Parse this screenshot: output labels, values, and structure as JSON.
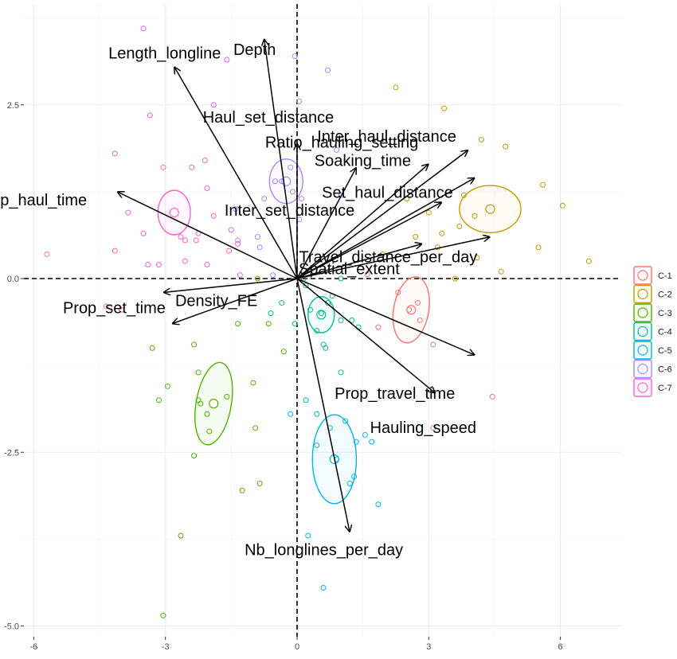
{
  "chart_data": {
    "type": "scatter",
    "title": "",
    "xlabel": "",
    "ylabel": "",
    "xlim": [
      -6.4,
      6.9
    ],
    "ylim": [
      -5.2,
      3.95
    ],
    "x_ticks": [
      -6,
      -3,
      0,
      3,
      6
    ],
    "x_tick_labels": [
      "-6",
      "-3",
      "0",
      "3",
      "6"
    ],
    "y_ticks": [
      2.5,
      0.0,
      -2.5,
      -5.0
    ],
    "y_tick_labels": [
      "2.5",
      "0.0",
      "-2.5",
      "-5.0"
    ],
    "grid": true,
    "reference_lines": {
      "x": 0,
      "y": 0,
      "style": "dashed"
    },
    "legend": {
      "position": "right",
      "entries": [
        "C-1",
        "C-2",
        "C-3",
        "C-4",
        "C-5",
        "C-6",
        "C-7"
      ]
    },
    "colors": {
      "C-1": "#F8766D",
      "C-2": "#C49A00",
      "C-3": "#53B400",
      "C-4": "#00C094",
      "C-5": "#00B6EB",
      "C-6": "#A58AFF",
      "C-7": "#FB61D7"
    },
    "clusters": [
      {
        "name": "C-1",
        "center": [
          2.6,
          -0.45
        ],
        "ellipse": {
          "rx": 0.4,
          "ry": 0.48,
          "angle": 10
        }
      },
      {
        "name": "C-2",
        "center": [
          4.4,
          1.0
        ],
        "ellipse": {
          "rx": 0.7,
          "ry": 0.34,
          "angle": 0
        }
      },
      {
        "name": "C-3",
        "center": [
          -1.9,
          -1.8
        ],
        "ellipse": {
          "rx": 0.4,
          "ry": 0.6,
          "angle": 10
        }
      },
      {
        "name": "C-4",
        "center": [
          0.55,
          -0.52
        ],
        "ellipse": {
          "rx": 0.3,
          "ry": 0.26,
          "angle": 0
        }
      },
      {
        "name": "C-5",
        "center": [
          0.85,
          -2.6
        ],
        "ellipse": {
          "rx": 0.5,
          "ry": 0.64,
          "angle": 0
        }
      },
      {
        "name": "C-6",
        "center": [
          -0.25,
          1.4
        ],
        "ellipse": {
          "rx": 0.38,
          "ry": 0.32,
          "angle": 0
        }
      },
      {
        "name": "C-7",
        "center": [
          -2.8,
          0.95
        ],
        "ellipse": {
          "rx": 0.37,
          "ry": 0.32,
          "angle": 0
        }
      }
    ],
    "points": [
      {
        "cluster": "C-1",
        "x": 2.3,
        "y": -0.2
      },
      {
        "cluster": "C-1",
        "x": 2.55,
        "y": -0.45
      },
      {
        "cluster": "C-1",
        "x": 2.8,
        "y": -0.6
      },
      {
        "cluster": "C-1",
        "x": 3.1,
        "y": -0.95
      },
      {
        "cluster": "C-1",
        "x": 1.85,
        "y": -0.7
      },
      {
        "cluster": "C-1",
        "x": 1.6,
        "y": 0.06
      },
      {
        "cluster": "C-1",
        "x": 3.1,
        "y": -2.15
      },
      {
        "cluster": "C-1",
        "x": 4.45,
        "y": -1.7
      },
      {
        "cluster": "C-1",
        "x": 2.75,
        "y": -0.35
      },
      {
        "cluster": "C-2",
        "x": 2.25,
        "y": 2.75
      },
      {
        "cluster": "C-2",
        "x": 3.35,
        "y": 2.45
      },
      {
        "cluster": "C-2",
        "x": 4.2,
        "y": 2.0
      },
      {
        "cluster": "C-2",
        "x": 4.75,
        "y": 1.9
      },
      {
        "cluster": "C-2",
        "x": 5.6,
        "y": 1.35
      },
      {
        "cluster": "C-2",
        "x": 6.05,
        "y": 1.05
      },
      {
        "cluster": "C-2",
        "x": 3.8,
        "y": 1.2
      },
      {
        "cluster": "C-2",
        "x": 5.5,
        "y": 0.45
      },
      {
        "cluster": "C-2",
        "x": 4.1,
        "y": 0.3
      },
      {
        "cluster": "C-2",
        "x": 4.65,
        "y": 0.1
      },
      {
        "cluster": "C-2",
        "x": 3.6,
        "y": 0.0
      },
      {
        "cluster": "C-2",
        "x": 6.65,
        "y": 0.25
      },
      {
        "cluster": "C-2",
        "x": 3.2,
        "y": 0.45
      },
      {
        "cluster": "C-2",
        "x": 2.7,
        "y": 0.6
      },
      {
        "cluster": "C-2",
        "x": 3.3,
        "y": 0.65
      },
      {
        "cluster": "C-2",
        "x": 3.0,
        "y": 0.95
      },
      {
        "cluster": "C-2",
        "x": 2.5,
        "y": 1.15
      },
      {
        "cluster": "C-2",
        "x": 4.05,
        "y": 0.9
      },
      {
        "cluster": "C-2",
        "x": 3.7,
        "y": 0.75
      },
      {
        "cluster": "C-2",
        "x": 1.95,
        "y": 0.35
      },
      {
        "cluster": "C-3",
        "x": -0.85,
        "y": -2.95
      },
      {
        "cluster": "C-3",
        "x": -1.25,
        "y": -3.05
      },
      {
        "cluster": "C-3",
        "x": -2.65,
        "y": -3.7
      },
      {
        "cluster": "C-3",
        "x": -3.05,
        "y": -4.85
      },
      {
        "cluster": "C-3",
        "x": -2.35,
        "y": -2.55
      },
      {
        "cluster": "C-3",
        "x": -2.0,
        "y": -2.2
      },
      {
        "cluster": "C-3",
        "x": -1.6,
        "y": -1.7
      },
      {
        "cluster": "C-3",
        "x": -2.2,
        "y": -1.8
      },
      {
        "cluster": "C-3",
        "x": -2.05,
        "y": -1.95
      },
      {
        "cluster": "C-3",
        "x": -2.25,
        "y": -1.75
      },
      {
        "cluster": "C-3",
        "x": -2.25,
        "y": -1.35
      },
      {
        "cluster": "C-3",
        "x": -2.35,
        "y": -0.95
      },
      {
        "cluster": "C-3",
        "x": -3.15,
        "y": -1.75
      },
      {
        "cluster": "C-3",
        "x": -2.95,
        "y": -1.55
      },
      {
        "cluster": "C-3",
        "x": -3.3,
        "y": -1.0
      },
      {
        "cluster": "C-3",
        "x": -1.0,
        "y": -1.5
      },
      {
        "cluster": "C-3",
        "x": -0.95,
        "y": -2.15
      },
      {
        "cluster": "C-3",
        "x": -0.65,
        "y": -0.65
      },
      {
        "cluster": "C-3",
        "x": -0.3,
        "y": -1.05
      },
      {
        "cluster": "C-3",
        "x": -0.9,
        "y": 0.0
      },
      {
        "cluster": "C-3",
        "x": -1.35,
        "y": -0.65
      },
      {
        "cluster": "C-4",
        "x": 0.55,
        "y": -0.5
      },
      {
        "cluster": "C-4",
        "x": 0.7,
        "y": -0.35
      },
      {
        "cluster": "C-4",
        "x": 0.3,
        "y": -0.45
      },
      {
        "cluster": "C-4",
        "x": 0.45,
        "y": -0.75
      },
      {
        "cluster": "C-4",
        "x": 0.6,
        "y": -0.95
      },
      {
        "cluster": "C-4",
        "x": 0.65,
        "y": -1.0
      },
      {
        "cluster": "C-4",
        "x": 1.0,
        "y": -0.6
      },
      {
        "cluster": "C-4",
        "x": 1.25,
        "y": -0.6
      },
      {
        "cluster": "C-4",
        "x": 1.4,
        "y": -0.7
      },
      {
        "cluster": "C-4",
        "x": 0.8,
        "y": -0.25
      },
      {
        "cluster": "C-4",
        "x": 1.0,
        "y": -1.35
      },
      {
        "cluster": "C-4",
        "x": -0.35,
        "y": -0.35
      },
      {
        "cluster": "C-4",
        "x": -0.6,
        "y": -0.5
      },
      {
        "cluster": "C-4",
        "x": -0.05,
        "y": -0.65
      },
      {
        "cluster": "C-4",
        "x": 0.2,
        "y": -0.1
      },
      {
        "cluster": "C-4",
        "x": 0.15,
        "y": 0.0
      },
      {
        "cluster": "C-4",
        "x": 1.0,
        "y": 0.0
      },
      {
        "cluster": "C-5",
        "x": 0.9,
        "y": -2.6
      },
      {
        "cluster": "C-5",
        "x": 0.45,
        "y": -2.4
      },
      {
        "cluster": "C-5",
        "x": 0.75,
        "y": -2.15
      },
      {
        "cluster": "C-5",
        "x": 1.1,
        "y": -2.05
      },
      {
        "cluster": "C-5",
        "x": 1.35,
        "y": -2.35
      },
      {
        "cluster": "C-5",
        "x": 1.3,
        "y": -2.85
      },
      {
        "cluster": "C-5",
        "x": 1.2,
        "y": -2.95
      },
      {
        "cluster": "C-5",
        "x": 0.2,
        "y": -1.75
      },
      {
        "cluster": "C-5",
        "x": 0.45,
        "y": -1.95
      },
      {
        "cluster": "C-5",
        "x": 1.55,
        "y": -2.25
      },
      {
        "cluster": "C-5",
        "x": 1.7,
        "y": -2.35
      },
      {
        "cluster": "C-5",
        "x": 1.85,
        "y": -3.25
      },
      {
        "cluster": "C-5",
        "x": -0.15,
        "y": -1.95
      },
      {
        "cluster": "C-5",
        "x": 0.25,
        "y": -3.7
      },
      {
        "cluster": "C-5",
        "x": 0.6,
        "y": -4.45
      },
      {
        "cluster": "C-6",
        "x": -0.15,
        "y": 1.6
      },
      {
        "cluster": "C-6",
        "x": -0.35,
        "y": 1.4
      },
      {
        "cluster": "C-6",
        "x": -0.5,
        "y": 1.4
      },
      {
        "cluster": "C-6",
        "x": -0.1,
        "y": 1.25
      },
      {
        "cluster": "C-6",
        "x": 0.1,
        "y": 1.15
      },
      {
        "cluster": "C-6",
        "x": -0.75,
        "y": 1.15
      },
      {
        "cluster": "C-6",
        "x": -0.05,
        "y": 3.2
      },
      {
        "cluster": "C-6",
        "x": 0.05,
        "y": 2.55
      },
      {
        "cluster": "C-6",
        "x": 0.7,
        "y": 3.0
      },
      {
        "cluster": "C-6",
        "x": 0.9,
        "y": 1.85
      },
      {
        "cluster": "C-6",
        "x": 1.0,
        "y": 1.2
      },
      {
        "cluster": "C-6",
        "x": -1.4,
        "y": 1.0
      },
      {
        "cluster": "C-6",
        "x": -0.9,
        "y": 0.6
      },
      {
        "cluster": "C-6",
        "x": -0.85,
        "y": 0.45
      },
      {
        "cluster": "C-6",
        "x": -1.35,
        "y": 0.55
      },
      {
        "cluster": "C-6",
        "x": 0.05,
        "y": 0.85
      },
      {
        "cluster": "C-6",
        "x": -0.55,
        "y": 0.05
      },
      {
        "cluster": "C-7",
        "x": -3.5,
        "y": 3.6
      },
      {
        "cluster": "C-7",
        "x": -1.6,
        "y": 3.15
      },
      {
        "cluster": "C-7",
        "x": -3.35,
        "y": 2.35
      },
      {
        "cluster": "C-7",
        "x": -4.15,
        "y": 1.8
      },
      {
        "cluster": "C-7",
        "x": -3.05,
        "y": 1.6
      },
      {
        "cluster": "C-7",
        "x": -1.9,
        "y": 2.5
      },
      {
        "cluster": "C-7",
        "x": -2.1,
        "y": 1.7
      },
      {
        "cluster": "C-7",
        "x": -2.4,
        "y": 1.6
      },
      {
        "cluster": "C-7",
        "x": -2.05,
        "y": 1.3
      },
      {
        "cluster": "C-7",
        "x": -5.7,
        "y": 0.35
      },
      {
        "cluster": "C-7",
        "x": -4.15,
        "y": 0.4
      },
      {
        "cluster": "C-7",
        "x": -3.5,
        "y": 0.65
      },
      {
        "cluster": "C-7",
        "x": -3.4,
        "y": 0.2
      },
      {
        "cluster": "C-7",
        "x": -3.15,
        "y": 0.2
      },
      {
        "cluster": "C-7",
        "x": -2.55,
        "y": 0.55
      },
      {
        "cluster": "C-7",
        "x": -2.25,
        "y": 0.65
      },
      {
        "cluster": "C-7",
        "x": -1.9,
        "y": 0.9
      },
      {
        "cluster": "C-7",
        "x": -2.65,
        "y": 0.6
      },
      {
        "cluster": "C-7",
        "x": -2.55,
        "y": 0.25
      },
      {
        "cluster": "C-7",
        "x": -2.05,
        "y": 0.2
      },
      {
        "cluster": "C-7",
        "x": -1.55,
        "y": 0.4
      },
      {
        "cluster": "C-7",
        "x": -1.5,
        "y": 0.7
      },
      {
        "cluster": "C-7",
        "x": -1.35,
        "y": 0.5
      },
      {
        "cluster": "C-7",
        "x": -2.3,
        "y": 0.55
      },
      {
        "cluster": "C-7",
        "x": -4.0,
        "y": -0.45
      },
      {
        "cluster": "C-7",
        "x": -4.35,
        "y": -0.4
      },
      {
        "cluster": "C-7",
        "x": -3.85,
        "y": 0.95
      },
      {
        "cluster": "C-7",
        "x": -1.3,
        "y": 0.05
      }
    ],
    "loadings": [
      {
        "name": "Depth",
        "x": -0.75,
        "y": 3.45
      },
      {
        "name": "Length_longline",
        "x": -2.8,
        "y": 3.05
      },
      {
        "name": "Haul_set_distance",
        "x": 0.0,
        "y": 1.95
      },
      {
        "name": "Soaking_time",
        "x": 1.35,
        "y": 1.6
      },
      {
        "name": "Inter_haul_distance",
        "x": 3.0,
        "y": 1.65
      },
      {
        "name": "Ratio_hauling_setting",
        "x": 3.9,
        "y": 1.85
      },
      {
        "name": "Set_haul_distance",
        "x": 4.05,
        "y": 1.45
      },
      {
        "name": "Inter_set_distance",
        "x": 3.3,
        "y": 1.1
      },
      {
        "name": "Prop_haul_time",
        "x": -4.1,
        "y": 1.25
      },
      {
        "name": "Travel_distance_per_day",
        "x": 4.4,
        "y": 0.6
      },
      {
        "name": "Spatial_extent",
        "x": 2.85,
        "y": 0.5
      },
      {
        "name": "Prop_set_time",
        "x": -3.05,
        "y": -0.2
      },
      {
        "name": "Density_FE",
        "x": -2.85,
        "y": -0.65
      },
      {
        "name": "Prop_travel_time",
        "x": 4.05,
        "y": -1.1
      },
      {
        "name": "Hauling_speed",
        "x": 3.15,
        "y": -1.65
      },
      {
        "name": "Nb_longlines_per_day",
        "x": 1.2,
        "y": -3.65
      }
    ]
  }
}
